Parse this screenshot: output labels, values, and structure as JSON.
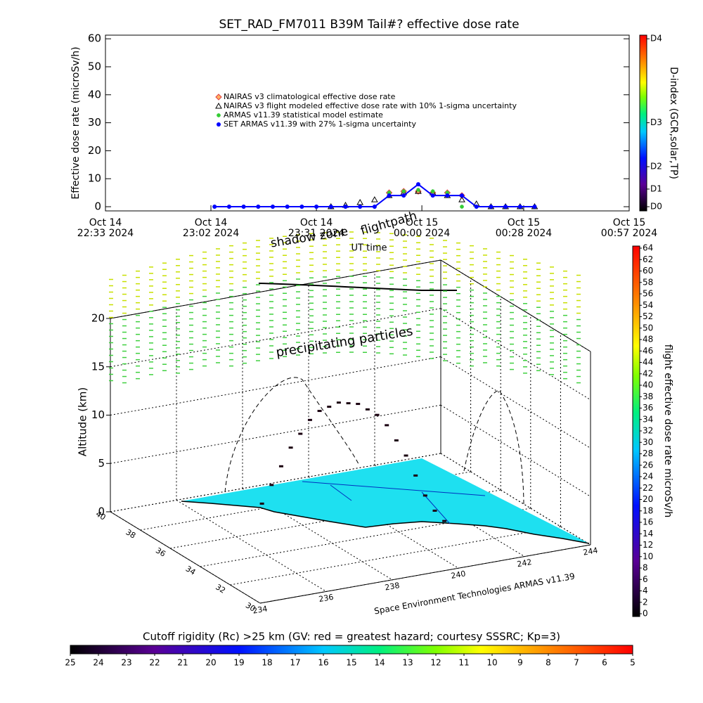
{
  "chart_data": [
    {
      "type": "line",
      "title": "SET_RAD_FM7011  B39M Tail#? effective dose rate",
      "x_label": "UT time",
      "y_label": "Effective dose rate (microSv/h)",
      "x": [
        "2024-10-14T23:03",
        "2024-10-14T23:07",
        "2024-10-14T23:11",
        "2024-10-14T23:15",
        "2024-10-14T23:19",
        "2024-10-14T23:23",
        "2024-10-14T23:27",
        "2024-10-14T23:31",
        "2024-10-14T23:35",
        "2024-10-14T23:39",
        "2024-10-14T23:43",
        "2024-10-14T23:47",
        "2024-10-14T23:51",
        "2024-10-14T23:55",
        "2024-10-14T23:59",
        "2024-10-15T00:03",
        "2024-10-15T00:07",
        "2024-10-15T00:11",
        "2024-10-15T00:15",
        "2024-10-15T00:19",
        "2024-10-15T00:23",
        "2024-10-15T00:27",
        "2024-10-15T00:31"
      ],
      "xlim": [
        "2024-10-14T22:33",
        "2024-10-15T00:57"
      ],
      "xticks": [
        {
          "value": "2024-10-14T22:33",
          "label": "Oct 14\n22:33 2024"
        },
        {
          "value": "2024-10-14T23:02",
          "label": "Oct 14\n23:02 2024"
        },
        {
          "value": "2024-10-14T23:31",
          "label": "Oct 14\n23:31 2024"
        },
        {
          "value": "2024-10-15T00:00",
          "label": "Oct 15\n00:00 2024"
        },
        {
          "value": "2024-10-15T00:28",
          "label": "Oct 15\n00:28 2024"
        },
        {
          "value": "2024-10-15T00:57",
          "label": "Oct 15\n00:57 2024"
        }
      ],
      "ylim": [
        -1.5,
        61.3
      ],
      "yticks": [
        0,
        10,
        20,
        30,
        40,
        50,
        60
      ],
      "series": [
        {
          "name": "NAIRAS v3 climatological effective dose rate",
          "color": "#e04040",
          "marker": "diamond",
          "values": [
            null,
            null,
            null,
            null,
            null,
            null,
            null,
            null,
            null,
            null,
            null,
            null,
            5,
            5.5,
            5.5,
            5,
            5,
            4,
            null,
            null,
            null,
            null,
            null
          ]
        },
        {
          "name": "NAIRAS v3 flight modeled effective dose rate with 10% 1-sigma uncertainty",
          "color": "#000000",
          "marker": "triangle",
          "values": [
            null,
            null,
            null,
            null,
            null,
            null,
            null,
            null,
            0,
            0.5,
            1.5,
            2.5,
            4,
            5,
            5.5,
            5,
            4,
            2.5,
            1,
            0,
            0,
            0,
            0
          ]
        },
        {
          "name": "ARMAS v11.39 statistical model estimate",
          "color": "#33cc33",
          "marker": "asterisk",
          "values": [
            0,
            0,
            0,
            0,
            0,
            0,
            0,
            0,
            0,
            0,
            0,
            0,
            5,
            5.5,
            6,
            5.5,
            5,
            0,
            0,
            0,
            0,
            0,
            0
          ]
        },
        {
          "name": "SET ARMAS v11.39 with 27% 1-sigma uncertainty",
          "color": "#0000ff",
          "marker": "circle",
          "line": true,
          "values": [
            0,
            0,
            0,
            0,
            0,
            0,
            0,
            0,
            0,
            0,
            0,
            0,
            4,
            4,
            8,
            4,
            4,
            4,
            0,
            0,
            0,
            0,
            0
          ]
        }
      ],
      "colorbar": {
        "label": "D-index (GCR,solar,TP)",
        "ticks": [
          {
            "value": 0,
            "label": "D0"
          },
          {
            "value": 6.3,
            "label": "D1"
          },
          {
            "value": 14.3,
            "label": "D2"
          },
          {
            "value": 30,
            "label": "D3"
          },
          {
            "value": 60,
            "label": "D4"
          }
        ]
      }
    },
    {
      "type": "surface3d",
      "z_label": "Altitude (km)",
      "footer": "Space Environment Technologies ARMAS v11.39",
      "annotations": [
        "shadow zone",
        "flightpath",
        "precipitating particles"
      ],
      "xlim": [
        30,
        40
      ],
      "xticks": [
        30,
        32,
        34,
        36,
        38,
        40
      ],
      "ylim": [
        234,
        244
      ],
      "yticks": [
        234,
        236,
        238,
        240,
        242,
        244
      ],
      "zlim": [
        0,
        20
      ],
      "zticks": [
        0,
        5,
        10,
        15,
        20
      ],
      "track": {
        "lat": [
          37.6,
          37.4,
          37.2,
          37.0,
          36.8,
          36.6,
          36.4,
          36.2,
          36.0,
          35.8,
          35.6,
          35.4,
          35.2,
          35.0,
          34.8,
          34.6,
          34.4,
          34.2,
          34.0,
          33.8
        ],
        "lon": [
          237.5,
          237.7,
          237.9,
          238.1,
          238.3,
          238.5,
          238.7,
          238.9,
          239.1,
          239.3,
          239.5,
          239.7,
          239.9,
          240.1,
          240.3,
          240.5,
          240.7,
          240.9,
          241.1,
          241.3
        ],
        "alt": [
          1,
          3,
          5,
          7,
          8.5,
          10,
          11,
          11.5,
          12,
          12,
          12,
          11.5,
          11,
          10,
          8.5,
          7,
          5,
          3,
          1.5,
          0.5
        ]
      },
      "colorbar": {
        "label": "flight effective dose rate microSv/h",
        "lim": [
          0,
          64
        ],
        "ticks": [
          0,
          2,
          4,
          6,
          8,
          10,
          12,
          14,
          16,
          18,
          20,
          22,
          24,
          26,
          28,
          30,
          32,
          34,
          36,
          38,
          40,
          42,
          44,
          46,
          48,
          50,
          52,
          54,
          56,
          58,
          60,
          62,
          64
        ]
      },
      "rigidity_bar": {
        "label": "Cutoff rigidity (Rc) >25 km (GV: red = greatest hazard; courtesy SSSRC; Kp=3)",
        "lim": [
          25,
          5
        ],
        "ticks": [
          25,
          24,
          23,
          22,
          21,
          20,
          19,
          18,
          17,
          16,
          15,
          14,
          13,
          12,
          11,
          10,
          9,
          8,
          7,
          6,
          5
        ]
      }
    }
  ]
}
